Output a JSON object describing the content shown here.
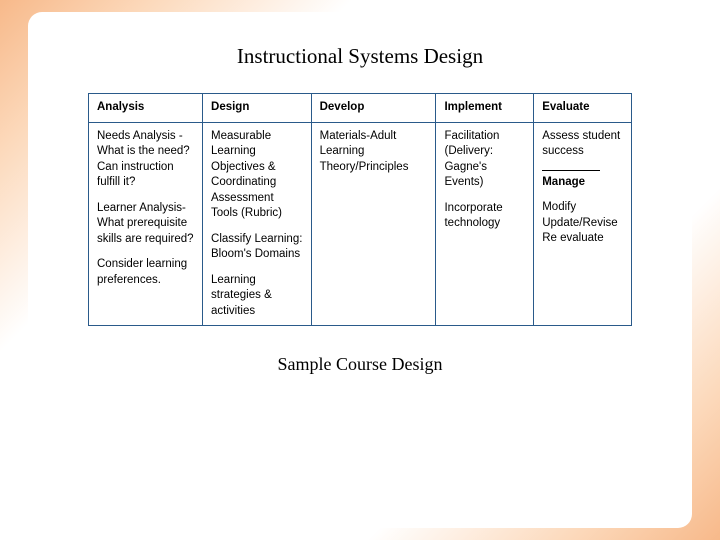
{
  "title": "Instructional Systems Design",
  "subtitle": "Sample Course Design",
  "table": {
    "border_color": "#2a5a8a",
    "header_fontsize": 11.5,
    "body_fontsize": 11.5,
    "columns": [
      {
        "key": "analysis",
        "label": "Analysis",
        "width_pct": 21
      },
      {
        "key": "design",
        "label": "Design",
        "width_pct": 20
      },
      {
        "key": "develop",
        "label": "Develop",
        "width_pct": 23
      },
      {
        "key": "implement",
        "label": "Implement",
        "width_pct": 18
      },
      {
        "key": "evaluate",
        "label": "Evaluate",
        "width_pct": 18
      }
    ],
    "cells": {
      "analysis": {
        "p1": "Needs Analysis -\nWhat is the need? Can instruction fulfill it?",
        "p2": "Learner Analysis-\nWhat prerequisite skills are required?",
        "p3": "Consider learning preferences."
      },
      "design": {
        "p1": "Measurable Learning Objectives & Coordinating Assessment Tools (Rubric)",
        "p2": "Classify Learning: Bloom's Domains",
        "p3": "Learning strategies & activities"
      },
      "develop": {
        "p1": "Materials-Adult Learning Theory/Principles"
      },
      "implement": {
        "p1": "Facilitation (Delivery: Gagne's Events)",
        "p2": "Incorporate technology"
      },
      "evaluate": {
        "p1": "Assess student success",
        "sep_label": "Manage",
        "p2": "Modify\nUpdate/Revise\nRe evaluate"
      }
    }
  },
  "colors": {
    "gradient_outer": "#f7b98a",
    "gradient_mid": "#fcd9bb",
    "background": "#ffffff",
    "text": "#000000"
  },
  "fonts": {
    "title_family": "Times New Roman",
    "title_size_pt": 21,
    "subtitle_size_pt": 18,
    "table_family": "Arial"
  }
}
